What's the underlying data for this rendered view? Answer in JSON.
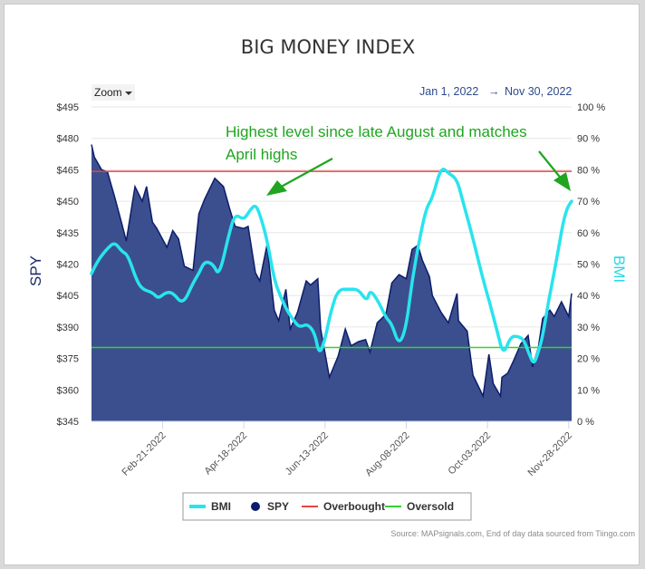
{
  "chart_data": {
    "type": "line",
    "title": "BIG MONEY INDEX",
    "zoom_label": "Zoom",
    "date_range": {
      "from": "Jan 1, 2022",
      "to": "Nov 30, 2022"
    },
    "xlabel": "",
    "y_left": {
      "label": "SPY",
      "min": 345,
      "max": 495,
      "ticks": [
        "$495",
        "$480",
        "$465",
        "$450",
        "$435",
        "$420",
        "$405",
        "$390",
        "$375",
        "$360",
        "$345"
      ]
    },
    "y_right": {
      "label": "BMI",
      "min": 0,
      "max": 100,
      "ticks": [
        "100 %",
        "90 %",
        "80 %",
        "70 %",
        "60 %",
        "50 %",
        "40 %",
        "30 %",
        "20 %",
        "10 %",
        "0 %"
      ]
    },
    "x_ticks": [
      {
        "label": "Feb-21-2022",
        "date": "2022-02-21"
      },
      {
        "label": "Apr-18-2022",
        "date": "2022-04-18"
      },
      {
        "label": "Jun-13-2022",
        "date": "2022-06-13"
      },
      {
        "label": "Aug-08-2022",
        "date": "2022-08-08"
      },
      {
        "label": "Oct-03-2022",
        "date": "2022-10-03"
      },
      {
        "label": "Nov-28-2022",
        "date": "2022-11-28"
      }
    ],
    "x_range": [
      "2022-01-03",
      "2022-11-30"
    ],
    "series": [
      {
        "name": "SPY",
        "kind": "area",
        "axis": "left",
        "color": "#3b4f8e",
        "stroke": "#0d1d6b",
        "points": [
          [
            "2022-01-03",
            477
          ],
          [
            "2022-01-05",
            471
          ],
          [
            "2022-01-10",
            465
          ],
          [
            "2022-01-14",
            464
          ],
          [
            "2022-01-19",
            452
          ],
          [
            "2022-01-24",
            439
          ],
          [
            "2022-01-27",
            431
          ],
          [
            "2022-02-02",
            457
          ],
          [
            "2022-02-07",
            450
          ],
          [
            "2022-02-10",
            457
          ],
          [
            "2022-02-14",
            440
          ],
          [
            "2022-02-17",
            437
          ],
          [
            "2022-02-24",
            428
          ],
          [
            "2022-02-28",
            436
          ],
          [
            "2022-03-04",
            432
          ],
          [
            "2022-03-08",
            419
          ],
          [
            "2022-03-14",
            417
          ],
          [
            "2022-03-18",
            444
          ],
          [
            "2022-03-22",
            451
          ],
          [
            "2022-03-29",
            461
          ],
          [
            "2022-04-04",
            457
          ],
          [
            "2022-04-08",
            447
          ],
          [
            "2022-04-12",
            438
          ],
          [
            "2022-04-18",
            437
          ],
          [
            "2022-04-21",
            438
          ],
          [
            "2022-04-26",
            416
          ],
          [
            "2022-04-29",
            412
          ],
          [
            "2022-05-04",
            429
          ],
          [
            "2022-05-09",
            398
          ],
          [
            "2022-05-12",
            393
          ],
          [
            "2022-05-17",
            408
          ],
          [
            "2022-05-20",
            389
          ],
          [
            "2022-05-25",
            397
          ],
          [
            "2022-05-31",
            412
          ],
          [
            "2022-06-03",
            410
          ],
          [
            "2022-06-08",
            413
          ],
          [
            "2022-06-10",
            389
          ],
          [
            "2022-06-16",
            366
          ],
          [
            "2022-06-22",
            376
          ],
          [
            "2022-06-27",
            389
          ],
          [
            "2022-07-01",
            381
          ],
          [
            "2022-07-06",
            383
          ],
          [
            "2022-07-11",
            384
          ],
          [
            "2022-07-14",
            378
          ],
          [
            "2022-07-19",
            392
          ],
          [
            "2022-07-25",
            396
          ],
          [
            "2022-07-29",
            411
          ],
          [
            "2022-08-03",
            415
          ],
          [
            "2022-08-08",
            413
          ],
          [
            "2022-08-12",
            427
          ],
          [
            "2022-08-16",
            429
          ],
          [
            "2022-08-19",
            422
          ],
          [
            "2022-08-24",
            414
          ],
          [
            "2022-08-26",
            405
          ],
          [
            "2022-09-01",
            397
          ],
          [
            "2022-09-06",
            392
          ],
          [
            "2022-09-12",
            406
          ],
          [
            "2022-09-13",
            393
          ],
          [
            "2022-09-19",
            388
          ],
          [
            "2022-09-23",
            367
          ],
          [
            "2022-09-30",
            357
          ],
          [
            "2022-10-04",
            377
          ],
          [
            "2022-10-07",
            363
          ],
          [
            "2022-10-12",
            357
          ],
          [
            "2022-10-13",
            366
          ],
          [
            "2022-10-17",
            368
          ],
          [
            "2022-10-21",
            374
          ],
          [
            "2022-10-26",
            382
          ],
          [
            "2022-10-31",
            386
          ],
          [
            "2022-11-03",
            371
          ],
          [
            "2022-11-07",
            380
          ],
          [
            "2022-11-10",
            394
          ],
          [
            "2022-11-15",
            398
          ],
          [
            "2022-11-18",
            395
          ],
          [
            "2022-11-23",
            402
          ],
          [
            "2022-11-28",
            395
          ],
          [
            "2022-11-30",
            406
          ]
        ]
      },
      {
        "name": "BMI",
        "kind": "line",
        "axis": "right",
        "color": "#28e4ee",
        "points": [
          [
            "2022-01-03",
            47
          ],
          [
            "2022-01-07",
            51
          ],
          [
            "2022-01-14",
            55
          ],
          [
            "2022-01-19",
            57
          ],
          [
            "2022-01-24",
            54
          ],
          [
            "2022-01-28",
            53
          ],
          [
            "2022-02-03",
            45
          ],
          [
            "2022-02-07",
            42
          ],
          [
            "2022-02-14",
            41
          ],
          [
            "2022-02-18",
            39
          ],
          [
            "2022-02-23",
            41
          ],
          [
            "2022-02-28",
            41
          ],
          [
            "2022-03-07",
            37
          ],
          [
            "2022-03-14",
            44
          ],
          [
            "2022-03-18",
            47
          ],
          [
            "2022-03-22",
            51
          ],
          [
            "2022-03-28",
            50
          ],
          [
            "2022-04-01",
            46
          ],
          [
            "2022-04-08",
            60
          ],
          [
            "2022-04-12",
            66
          ],
          [
            "2022-04-18",
            64
          ],
          [
            "2022-04-22",
            67
          ],
          [
            "2022-04-26",
            69
          ],
          [
            "2022-04-29",
            66
          ],
          [
            "2022-05-04",
            58
          ],
          [
            "2022-05-09",
            45
          ],
          [
            "2022-05-13",
            40
          ],
          [
            "2022-05-18",
            35
          ],
          [
            "2022-05-24",
            31
          ],
          [
            "2022-05-27",
            30
          ],
          [
            "2022-06-01",
            31
          ],
          [
            "2022-06-06",
            28
          ],
          [
            "2022-06-09",
            21
          ],
          [
            "2022-06-13",
            26
          ],
          [
            "2022-06-17",
            35
          ],
          [
            "2022-06-22",
            42
          ],
          [
            "2022-06-30",
            42
          ],
          [
            "2022-07-06",
            42
          ],
          [
            "2022-07-12",
            38
          ],
          [
            "2022-07-14",
            42
          ],
          [
            "2022-07-20",
            38
          ],
          [
            "2022-07-25",
            33
          ],
          [
            "2022-07-29",
            31
          ],
          [
            "2022-08-03",
            24
          ],
          [
            "2022-08-08",
            30
          ],
          [
            "2022-08-12",
            45
          ],
          [
            "2022-08-18",
            60
          ],
          [
            "2022-08-22",
            68
          ],
          [
            "2022-08-26",
            71
          ],
          [
            "2022-09-01",
            81
          ],
          [
            "2022-09-06",
            79
          ],
          [
            "2022-09-12",
            77
          ],
          [
            "2022-09-16",
            70
          ],
          [
            "2022-09-22",
            60
          ],
          [
            "2022-09-30",
            45
          ],
          [
            "2022-10-05",
            37
          ],
          [
            "2022-10-10",
            28
          ],
          [
            "2022-10-14",
            21
          ],
          [
            "2022-10-19",
            27
          ],
          [
            "2022-10-24",
            27
          ],
          [
            "2022-10-28",
            26
          ],
          [
            "2022-11-01",
            21
          ],
          [
            "2022-11-04",
            18
          ],
          [
            "2022-11-07",
            22
          ],
          [
            "2022-11-10",
            27
          ],
          [
            "2022-11-14",
            38
          ],
          [
            "2022-11-17",
            45
          ],
          [
            "2022-11-21",
            55
          ],
          [
            "2022-11-24",
            63
          ],
          [
            "2022-11-27",
            68
          ],
          [
            "2022-11-30",
            70
          ]
        ]
      }
    ],
    "reference_lines": [
      {
        "name": "Overbought",
        "axis": "right",
        "value": 79.5,
        "color": "#e64545"
      },
      {
        "name": "Oversold",
        "axis": "right",
        "value": 23.5,
        "color": "#2fd42f"
      }
    ],
    "legend": [
      {
        "name": "BMI",
        "symbol": "line",
        "color": "#28e4ee"
      },
      {
        "name": "SPY",
        "symbol": "dot",
        "color": "#0d1d6b"
      },
      {
        "name": "Overbought",
        "symbol": "line",
        "color": "#e64545"
      },
      {
        "name": "Oversold",
        "symbol": "line",
        "color": "#2fd42f"
      }
    ],
    "legend_placement": "bottom",
    "annotations": [
      {
        "lines": [
          "Highest level since late August and matches",
          "April highs"
        ],
        "color": "#1fa51f"
      }
    ],
    "source": "Source: MAPsignals.com, End of day data sourced from Tiingo.com"
  }
}
